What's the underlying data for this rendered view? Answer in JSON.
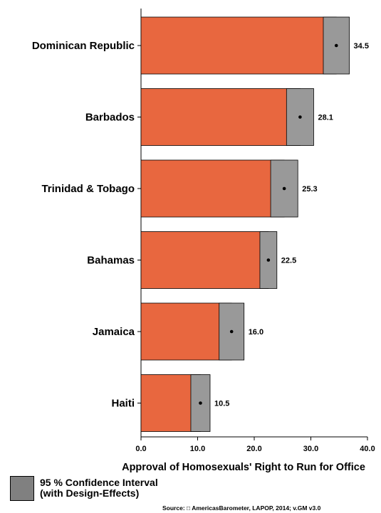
{
  "chart_data": {
    "type": "bar",
    "orientation": "horizontal",
    "categories": [
      "Dominican Republic",
      "Barbados",
      "Trinidad & Tobago",
      "Bahamas",
      "Jamaica",
      "Haiti"
    ],
    "values": [
      34.5,
      28.1,
      25.3,
      22.5,
      16.0,
      10.5
    ],
    "value_labels": [
      "34.5",
      "28.1",
      "25.3",
      "22.5",
      "16.0",
      "10.5"
    ],
    "ci_low": [
      32.2,
      25.7,
      22.9,
      21.0,
      13.8,
      8.8
    ],
    "ci_high": [
      36.8,
      30.5,
      27.7,
      24.0,
      18.2,
      12.2
    ],
    "xlabel": "Approval of Homosexuals' Right to Run for Office",
    "xlim": [
      0,
      40
    ],
    "xticks": [
      "0.0",
      "10.0",
      "20.0",
      "30.0",
      "40.0"
    ],
    "grid": false,
    "bar_color": "#E8673F",
    "ci_color": "#999999"
  },
  "legend": {
    "line1": "95 % Confidence Interval",
    "line2": "(with Design-Effects)"
  },
  "source": "Source: □ AmericasBarometer, LAPOP, 2014; v.GM v3.0"
}
